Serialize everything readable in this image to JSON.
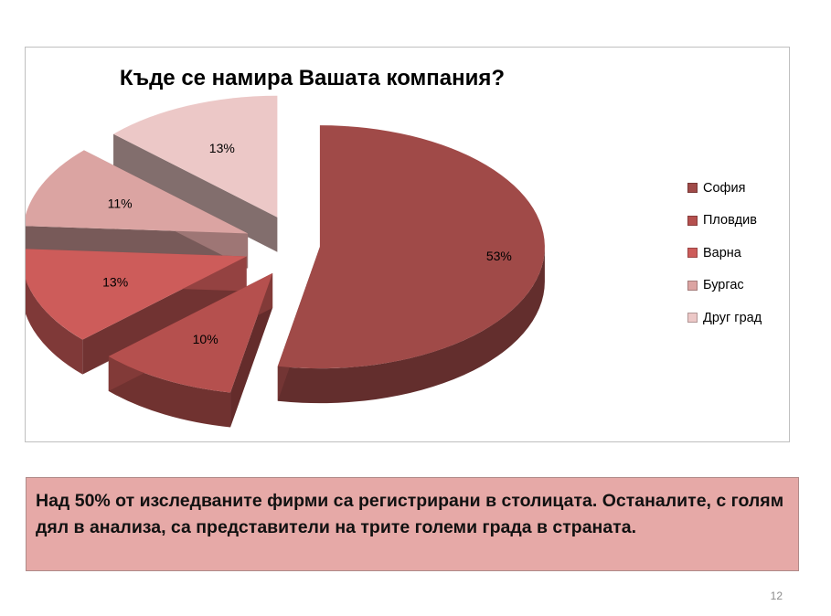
{
  "chart_data": {
    "type": "pie",
    "title": "Къде се намира Вашата компания?",
    "categories": [
      "София",
      "Пловдив",
      "Варна",
      "Бургас",
      "Друг град"
    ],
    "values": [
      53,
      10,
      13,
      11,
      13
    ],
    "labels": [
      "53%",
      "10%",
      "13%",
      "11%",
      "13%"
    ],
    "colors": [
      "#a04a48",
      "#b5504e",
      "#cd5c5a",
      "#dba4a2",
      "#ecc8c7"
    ],
    "legend_position": "right",
    "exploded": true,
    "style": "3d"
  },
  "summary": {
    "text": "Над 50% от изследваните фирми са регистрирани в столицата. Останалите, с голям дял в анализа, са представители на трите големи града в страната."
  },
  "page_number": "12"
}
